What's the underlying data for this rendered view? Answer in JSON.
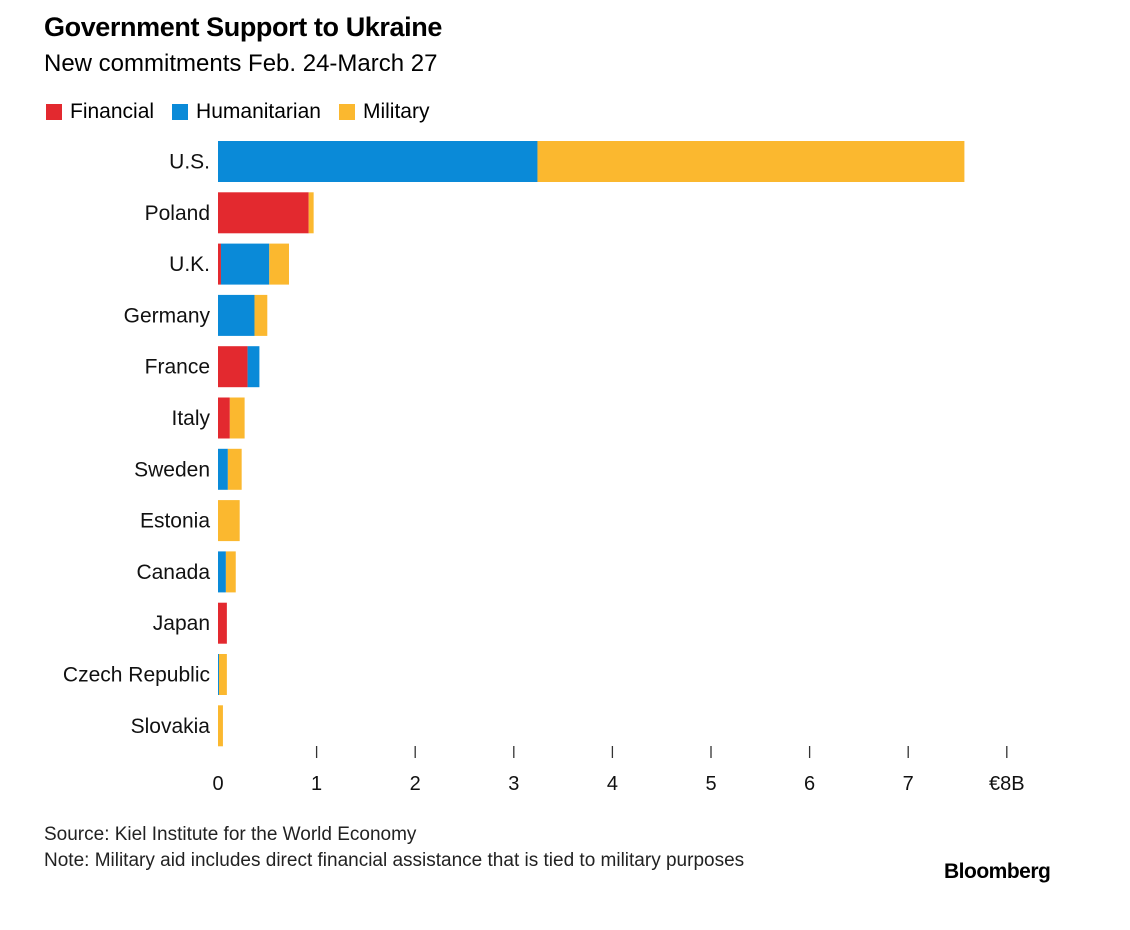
{
  "chart_data": {
    "type": "bar",
    "orientation": "horizontal",
    "stacked": true,
    "title": "Government Support to Ukraine",
    "subtitle": "New commitments Feb. 24-March 27",
    "categories": [
      "U.S.",
      "Poland",
      "U.K.",
      "Germany",
      "France",
      "Italy",
      "Sweden",
      "Estonia",
      "Canada",
      "Japan",
      "Czech Republic",
      "Slovakia"
    ],
    "series": [
      {
        "name": "Financial",
        "color": "#e3292f",
        "values": [
          0,
          0.92,
          0.03,
          0,
          0.3,
          0.12,
          0,
          0,
          0,
          0.09,
          0,
          0
        ]
      },
      {
        "name": "Humanitarian",
        "color": "#0a8ad8",
        "values": [
          3.24,
          0,
          0.49,
          0.37,
          0.12,
          0,
          0.1,
          0,
          0.08,
          0,
          0.01,
          0
        ]
      },
      {
        "name": "Military",
        "color": "#fbb82f",
        "values": [
          4.33,
          0.05,
          0.2,
          0.13,
          0,
          0.15,
          0.14,
          0.22,
          0.1,
          0,
          0.08,
          0.05
        ]
      }
    ],
    "xlim": [
      0,
      8
    ],
    "xticks": [
      0,
      1,
      2,
      3,
      4,
      5,
      6,
      7,
      8
    ],
    "xtick_labels": [
      "0",
      "1",
      "2",
      "3",
      "4",
      "5",
      "6",
      "7",
      "€8B"
    ],
    "legend_position": "top-left",
    "grid": false
  },
  "footer": {
    "source": "Source: Kiel Institute for the World Economy",
    "note": "Note: Military aid includes direct financial assistance that is tied to military purposes",
    "brand": "Bloomberg"
  }
}
